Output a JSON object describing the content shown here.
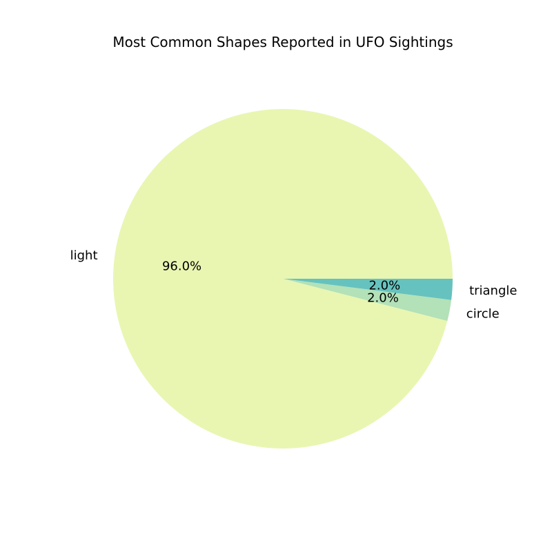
{
  "chart_data": {
    "type": "pie",
    "title": "Most Common Shapes Reported in UFO Sightings",
    "slices": [
      {
        "label": "triangle",
        "value": 2.0,
        "pct_label": "2.0%",
        "color": "#66c2be"
      },
      {
        "label": "circle",
        "value": 2.0,
        "pct_label": "2.0%",
        "color": "#b3e1b8"
      },
      {
        "label": "light",
        "value": 96.0,
        "pct_label": "96.0%",
        "color": "#e8f6b2"
      }
    ],
    "start_angle_deg": 0,
    "direction": "clockwise",
    "legend": "none"
  }
}
